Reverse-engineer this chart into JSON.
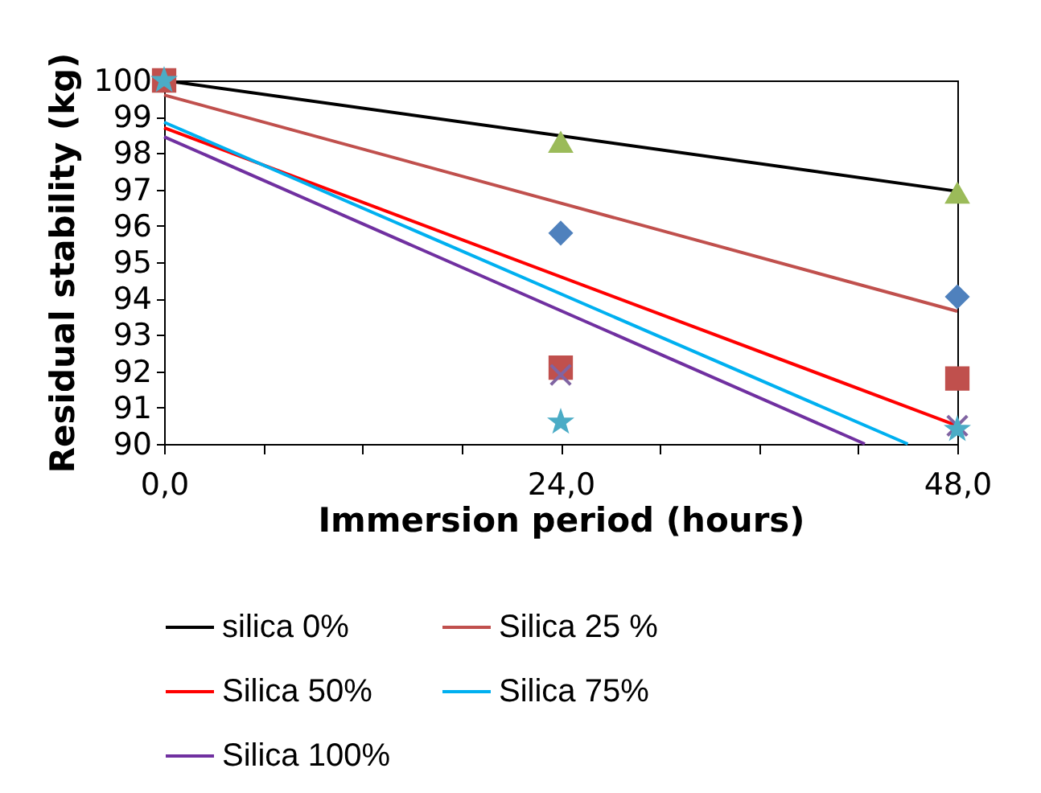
{
  "chart_data": {
    "type": "scatter",
    "xlabel": "Immersion period (hours)",
    "ylabel": "Residual stability (kg)",
    "xlim": [
      0,
      48
    ],
    "xticks": [
      {
        "value": 0,
        "label": "0,0"
      },
      {
        "value": 6,
        "label": null
      },
      {
        "value": 12,
        "label": null
      },
      {
        "value": 18,
        "label": null
      },
      {
        "value": 24,
        "label": "24,0"
      },
      {
        "value": 30,
        "label": null
      },
      {
        "value": 36,
        "label": null
      },
      {
        "value": 42,
        "label": null
      },
      {
        "value": 48,
        "label": "48,0"
      }
    ],
    "ylim": [
      90,
      100
    ],
    "yticks": [
      90,
      91,
      92,
      93,
      94,
      95,
      96,
      97,
      98,
      99,
      100
    ],
    "grid": false,
    "legend": "bottom",
    "series": [
      {
        "marker": "triangle",
        "color": "#9bbb59",
        "x": [
          24,
          48
        ],
        "values": [
          98.3,
          96.9
        ]
      },
      {
        "marker": "diamond",
        "color": "#4f81bd",
        "x": [
          24,
          48
        ],
        "values": [
          95.8,
          94.05
        ]
      },
      {
        "marker": "square",
        "color": "#c0504d",
        "x": [
          0,
          24,
          48
        ],
        "values": [
          100,
          92.1,
          91.8
        ]
      },
      {
        "marker": "cross",
        "color": "#8064a2",
        "x": [
          24,
          48
        ],
        "values": [
          91.9,
          90.5
        ]
      },
      {
        "marker": "star",
        "color": "#4bacc6",
        "x": [
          0,
          24,
          48
        ],
        "values": [
          100,
          90.6,
          90.4
        ]
      },
      {
        "type": "line",
        "name": "silica 0%",
        "color": "#000000",
        "x": [
          0,
          48
        ],
        "values": [
          100,
          96.95
        ]
      },
      {
        "type": "line",
        "name": "Silica 25 %",
        "color": "#c0504d",
        "x": [
          0,
          48
        ],
        "values": [
          99.6,
          93.65
        ]
      },
      {
        "type": "line",
        "name": "Silica 50%",
        "color": "#ff0000",
        "x": [
          0,
          48
        ],
        "values": [
          98.7,
          90.5
        ]
      },
      {
        "type": "line",
        "name": "Silica 75%",
        "color": "#00b0f0",
        "x": [
          0,
          45
        ],
        "values": [
          98.85,
          90
        ]
      },
      {
        "type": "line",
        "name": "Silica 100%",
        "color": "#7030a0",
        "x": [
          0,
          42.4
        ],
        "values": [
          98.45,
          90
        ]
      }
    ]
  }
}
